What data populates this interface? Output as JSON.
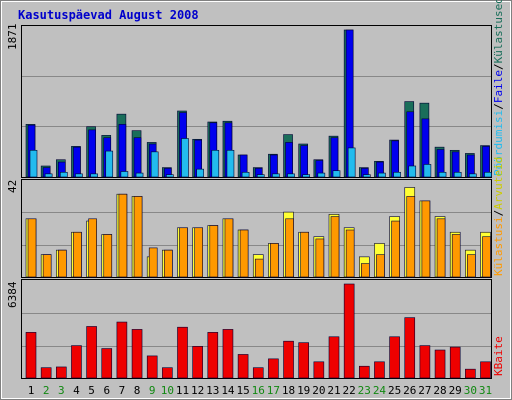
{
  "chart_data": {
    "type": "bar",
    "title": "Kasutuspäevad August 2008",
    "categories": [
      "1",
      "2",
      "3",
      "4",
      "5",
      "6",
      "7",
      "8",
      "9",
      "10",
      "11",
      "12",
      "13",
      "14",
      "15",
      "16",
      "17",
      "18",
      "19",
      "20",
      "21",
      "22",
      "23",
      "24",
      "25",
      "26",
      "27",
      "28",
      "29",
      "30",
      "31"
    ],
    "weekend_days": [
      "2",
      "3",
      "9",
      "10",
      "16",
      "17",
      "23",
      "24",
      "30",
      "31"
    ],
    "colors": {
      "title": "#0000cc",
      "background": "#c0c0c0",
      "frame": "#000000",
      "gridline": "#888888",
      "weekday_label": "#000000",
      "weekend_label": "#118811",
      "kulastused": "#1a6e5a",
      "faile": "#0000ee",
      "poordumisi": "#22bbee",
      "arvuteid": "#ffff33",
      "kulastusi": "#ff9900",
      "kbaite": "#ee0000"
    },
    "legend_labels": {
      "poordumisi": "Pöördumisi",
      "faile": "Faile",
      "kulastused": "Külastused",
      "kulastusi": "Külastusi",
      "arvuteid": "Arvuteid",
      "kbaite": "KBaite",
      "separator": "/"
    },
    "panels": [
      {
        "id": "top",
        "ymax_label": "1871",
        "ylim": [
          0,
          1871
        ],
        "series": [
          {
            "key": "kulastused",
            "name": "Külastused",
            "values": [
              670,
              140,
              220,
              390,
              640,
              530,
              800,
              590,
              440,
              120,
              840,
              480,
              700,
              710,
              280,
              120,
              290,
              540,
              420,
              220,
              520,
              1871,
              120,
              200,
              470,
              960,
              940,
              380,
              340,
              300,
              400
            ]
          },
          {
            "key": "faile",
            "name": "Faile",
            "values": [
              660,
              120,
              190,
              380,
              600,
              500,
              670,
              500,
              420,
              110,
              820,
              470,
              690,
              690,
              280,
              110,
              280,
              440,
              400,
              210,
              500,
              1871,
              110,
              190,
              460,
              830,
              740,
              350,
              320,
              280,
              390
            ]
          },
          {
            "key": "poordumisi",
            "name": "Pöördumisi",
            "values": [
              340,
              40,
              60,
              40,
              40,
              330,
              70,
              50,
              320,
              30,
              490,
              100,
              340,
              340,
              60,
              30,
              40,
              40,
              30,
              50,
              80,
              370,
              30,
              50,
              60,
              140,
              160,
              60,
              60,
              40,
              60
            ]
          }
        ]
      },
      {
        "id": "middle",
        "ymax_label": "42",
        "ylim": [
          0,
          42
        ],
        "series": [
          {
            "key": "arvuteid",
            "name": "Arvuteid",
            "values": [
              26,
              10,
              12,
              20,
              25,
              19,
              37,
              36,
              9,
              12,
              22,
              22,
              23,
              26,
              21,
              10,
              15,
              29,
              20,
              18,
              28,
              22,
              9,
              15,
              27,
              40,
              34,
              27,
              20,
              12,
              20
            ]
          },
          {
            "key": "kulastusi",
            "name": "Külastusi",
            "values": [
              26,
              10,
              12,
              20,
              26,
              19,
              37,
              36,
              13,
              12,
              22,
              22,
              23,
              26,
              21,
              8,
              15,
              26,
              20,
              17,
              27,
              21,
              6,
              10,
              25,
              36,
              34,
              26,
              19,
              10,
              18
            ]
          }
        ]
      },
      {
        "id": "bottom",
        "ymax_label": "6384",
        "ylim": [
          0,
          6384
        ],
        "series": [
          {
            "key": "kbaite",
            "name": "KBaite",
            "values": [
              3100,
              700,
              750,
              2200,
              3500,
              2000,
              3800,
              3300,
              1500,
              700,
              3450,
              2150,
              3100,
              3300,
              1600,
              700,
              1300,
              2500,
              2400,
              1100,
              2800,
              6384,
              800,
              1100,
              2800,
              4100,
              2200,
              1900,
              2100,
              600,
              1100
            ]
          }
        ]
      }
    ]
  }
}
